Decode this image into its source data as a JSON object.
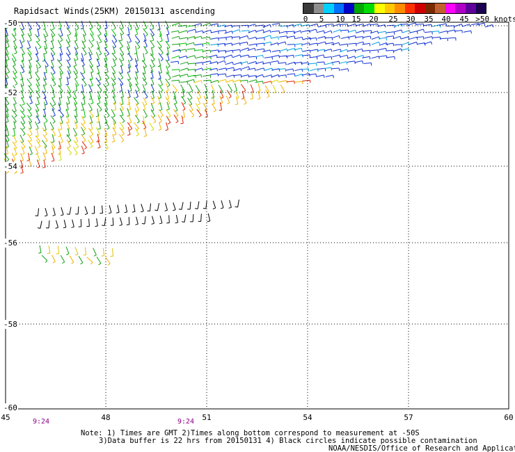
{
  "title": "Rapidsact Winds(25KM) 20150131 ascending",
  "legend": {
    "colors": [
      "#3a3a3a",
      "#8e8e8e",
      "#00d0ff",
      "#0070ff",
      "#0000c8",
      "#00a800",
      "#00dd00",
      "#ffff00",
      "#ffc800",
      "#ff8c00",
      "#ff3000",
      "#d00000",
      "#7a2a00",
      "#c06030",
      "#ff00ff",
      "#b000c8",
      "#60009a",
      "#1a0050"
    ],
    "labels": [
      "0",
      "5",
      "10",
      "15",
      "20",
      "25",
      "30",
      "35",
      "40",
      "45",
      ">50 knots"
    ]
  },
  "axes": {
    "lon_ticks": [
      "45",
      "48",
      "51",
      "54",
      "57",
      "60"
    ],
    "lat_ticks": [
      "-50",
      "-52",
      "-54",
      "-56",
      "-58",
      "-60"
    ],
    "lon_range": [
      45,
      60
    ],
    "lat_range": [
      -50,
      -60
    ]
  },
  "time_labels": [
    "9:24",
    "9:24"
  ],
  "notes": [
    "Note: 1) Times are GMT 2)Times along bottom correspond to measurement at -50S",
    "3)Data buffer is 22 hrs from 20150131 4) Black circles indicate possible contamination",
    "NOAA/NESDIS/Office of Research and Applications"
  ],
  "colors": {
    "frame": "#000000",
    "grid": "#000000",
    "time_label": "#8a008a"
  }
}
